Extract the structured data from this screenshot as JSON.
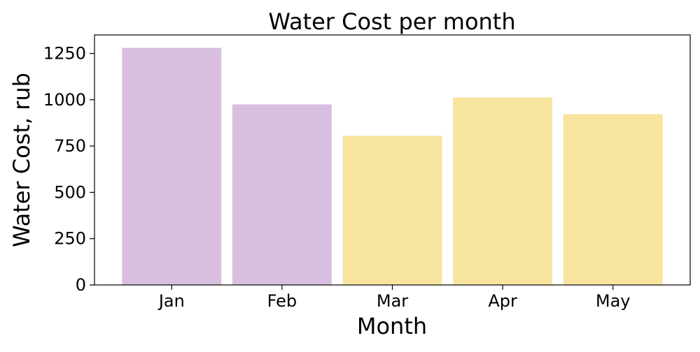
{
  "chart_data": {
    "type": "bar",
    "title": "Water Cost per month",
    "xlabel": "Month",
    "ylabel": "Water Cost, rub",
    "categories": [
      "Jan",
      "Feb",
      "Mar",
      "Apr",
      "May"
    ],
    "values": [
      1280,
      975,
      805,
      1012,
      922
    ],
    "bar_colors": [
      "#d8bfe0",
      "#d8bfe0",
      "#f7e49e",
      "#f7e49e",
      "#f7e49e"
    ],
    "ylim": [
      0,
      1350
    ],
    "yticks": [
      0,
      250,
      500,
      750,
      1000,
      1250
    ],
    "ytick_labels": [
      "0",
      "250",
      "500",
      "750",
      "1000",
      "1250"
    ],
    "grid": false,
    "legend": "none"
  }
}
